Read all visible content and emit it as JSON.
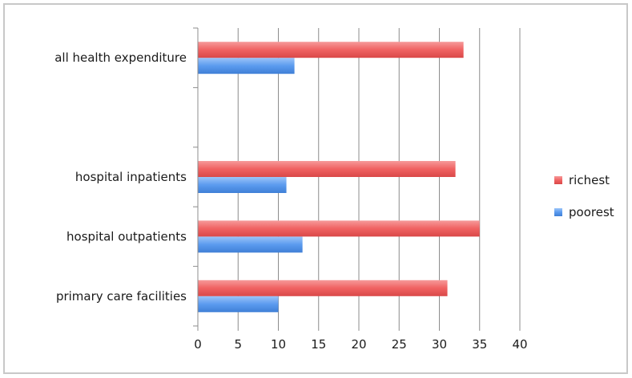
{
  "chart_data": {
    "type": "bar",
    "orientation": "horizontal",
    "title": "",
    "xlabel": "",
    "ylabel": "",
    "categories": [
      "primary care facilities",
      "hospital outpatients",
      "hospital inpatients",
      "",
      "all health expenditure"
    ],
    "series": [
      {
        "name": "poorest",
        "color": "#5b9bef",
        "values": [
          10,
          13,
          11,
          null,
          12
        ]
      },
      {
        "name": "richest",
        "color": "#f06262",
        "values": [
          31,
          35,
          32,
          null,
          33
        ]
      }
    ],
    "xlim": [
      0,
      40
    ],
    "x_ticks": [
      0,
      5,
      10,
      15,
      20,
      25,
      30,
      35,
      40
    ],
    "grid": "vertical",
    "legend": "right"
  }
}
